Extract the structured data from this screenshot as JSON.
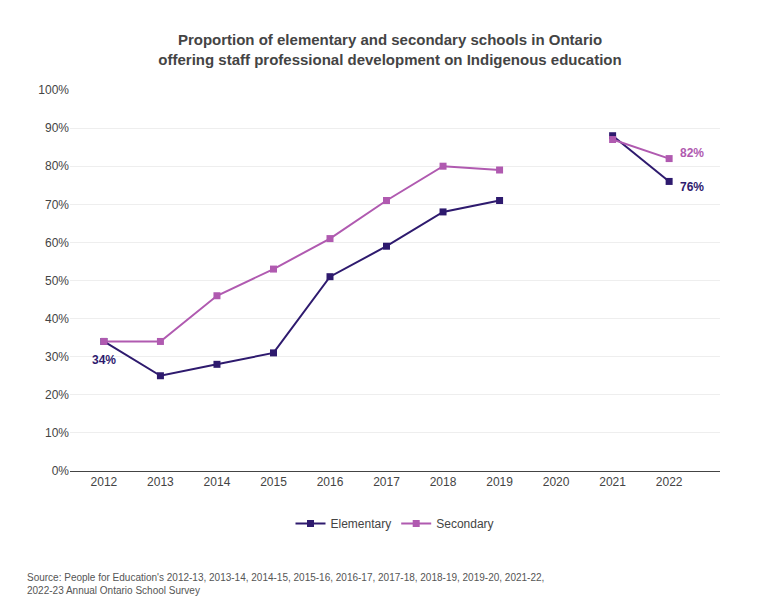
{
  "chart_data": {
    "type": "line",
    "title": "Proportion of elementary and secondary schools in Ontario\noffering staff professional development on Indigenous education",
    "x": [
      2012,
      2013,
      2014,
      2015,
      2016,
      2017,
      2018,
      2019,
      2020,
      2021,
      2022
    ],
    "series": [
      {
        "name": "Elementary",
        "color": "#2e1a6e",
        "values": [
          34,
          25,
          28,
          31,
          51,
          59,
          68,
          71,
          null,
          88,
          76
        ]
      },
      {
        "name": "Secondary",
        "color": "#b05ab0",
        "values": [
          34,
          34,
          46,
          53,
          61,
          71,
          80,
          79,
          null,
          87,
          82
        ]
      }
    ],
    "xlim": [
      2011.4,
      2022.9
    ],
    "xticks": [
      2012,
      2013,
      2014,
      2015,
      2016,
      2017,
      2018,
      2019,
      2020,
      2021,
      2022
    ],
    "ylim": [
      0,
      100
    ],
    "yticks": [
      {
        "value": 0,
        "label": "0%"
      },
      {
        "value": 10,
        "label": "10%"
      },
      {
        "value": 20,
        "label": "20%"
      },
      {
        "value": 30,
        "label": "30%"
      },
      {
        "value": 40,
        "label": "40%"
      },
      {
        "value": 50,
        "label": "50%"
      },
      {
        "value": 60,
        "label": "60%"
      },
      {
        "value": 70,
        "label": "70%"
      },
      {
        "value": 80,
        "label": "80%"
      },
      {
        "value": 90,
        "label": "90%"
      },
      {
        "value": 100,
        "label": "100%"
      }
    ],
    "grid": "y",
    "legend": "bottom",
    "marker": "square",
    "annotations": [
      {
        "text": "34%",
        "x": 2012,
        "y": 34,
        "series": "Elementary"
      },
      {
        "text": "82%",
        "x": 2022,
        "y": 82,
        "series": "Secondary"
      },
      {
        "text": "76%",
        "x": 2022,
        "y": 76,
        "series": "Elementary"
      },
      {
        "text": "Source: People for Education's 2012-13, 2013-14, 2014-15, 2015-16, 2016-17, 2017-18, 2018-19, 2019-20, 2021-22,\n2022-23 Annual Ontario School Survey"
      }
    ]
  }
}
